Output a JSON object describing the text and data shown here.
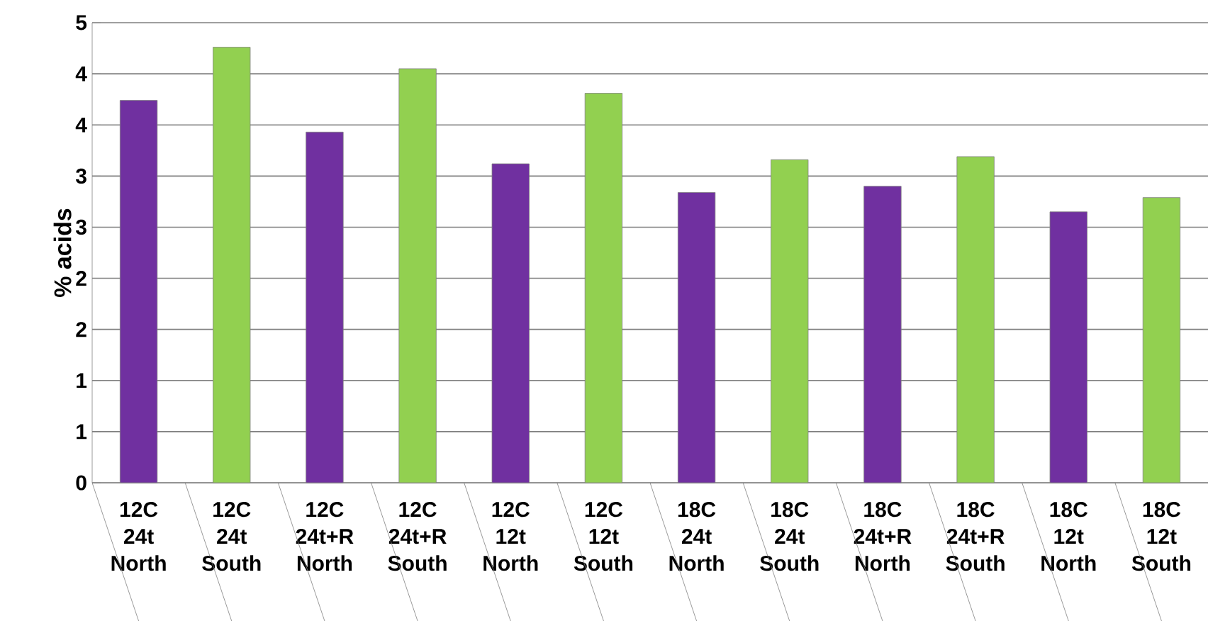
{
  "chart_data": {
    "type": "bar",
    "ylabel": "% acids",
    "categories": [
      "12C 24t North",
      "12C 24t South",
      "12C 24t+R North",
      "12C 24t+R South",
      "12C 12t North",
      "12C 12t South",
      "18C 24t North",
      "18C 24t South",
      "18C 24t+R North",
      "18C 24t+R South",
      "18C 12t North",
      "18C 12t South"
    ],
    "values": [
      3.74,
      4.26,
      3.43,
      4.05,
      3.12,
      3.81,
      2.84,
      3.16,
      2.9,
      3.19,
      2.65,
      2.79
    ],
    "colors": [
      "#7030a0",
      "#92d050",
      "#7030a0",
      "#92d050",
      "#7030a0",
      "#92d050",
      "#7030a0",
      "#92d050",
      "#7030a0",
      "#92d050",
      "#7030a0",
      "#92d050"
    ],
    "ylim": [
      0,
      4.5
    ],
    "yticks": [
      {
        "value": 0,
        "label": "0"
      },
      {
        "value": 0.5,
        "label": "1"
      },
      {
        "value": 1,
        "label": "1"
      },
      {
        "value": 1.5,
        "label": "2"
      },
      {
        "value": 2,
        "label": "2"
      },
      {
        "value": 2.5,
        "label": "3"
      },
      {
        "value": 3,
        "label": "3"
      },
      {
        "value": 3.5,
        "label": "4"
      },
      {
        "value": 4,
        "label": "4"
      },
      {
        "value": 4.5,
        "label": "5"
      }
    ],
    "grid": "y"
  }
}
